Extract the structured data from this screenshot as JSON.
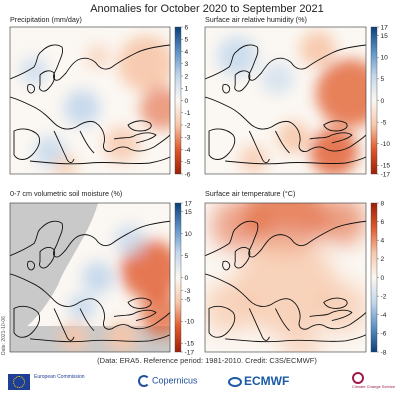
{
  "figure": {
    "title": "Anomalies for October 2020 to September 2021",
    "footnote": "(Data: ERA5.  Reference period: 1981-2010.  Credit: C3S/ECMWF)",
    "date_stamp": "Date: 2021-10-06"
  },
  "colors": {
    "negative_strong": "#9e1f07",
    "negative": "#e0582a",
    "negative_light": "#f7c7aa",
    "neutral": "#fbf7f2",
    "positive_light": "#c3d7ec",
    "positive": "#5c92c7",
    "positive_strong": "#0b3f7a",
    "land_mask": "#c9c9c9",
    "coastline": "#111111"
  },
  "chart_data": [
    {
      "type": "heatmap",
      "title": "Precipitation (mm/day)",
      "colorbar_ticks": [
        6,
        5,
        4,
        3,
        2,
        1,
        0,
        -1,
        -2,
        -3,
        -4,
        -5,
        -6
      ],
      "vmin": -6,
      "vmax": 6,
      "colormap": "red-negative / blue-positive",
      "pattern": "mixed weak anomalies; drier over eastern Europe and the northeast, wetter patches over central Europe and the Mediterranean"
    },
    {
      "type": "heatmap",
      "title": "Surface air relative humidity (%)",
      "colorbar_ticks": [
        17,
        15,
        10,
        5,
        0,
        -5,
        -10,
        -15,
        -17
      ],
      "vmin": -17,
      "vmax": 17,
      "colormap": "red-negative / blue-positive",
      "pattern": "drier than average over Russia, Turkey and the eastern Mediterranean; slightly more humid over the northwest"
    },
    {
      "type": "heatmap",
      "title": "0-7 cm volumetric soil moisture (%)",
      "colorbar_ticks": [
        17,
        15,
        10,
        5,
        0,
        -3,
        -5,
        -10,
        -15,
        -17
      ],
      "vmin": -17,
      "vmax": 17,
      "colormap": "red-negative / blue-positive",
      "pattern": "drier than average over European Russia and parts of southern Europe; wetter patches over central Europe; ocean areas masked grey"
    },
    {
      "type": "heatmap",
      "title": "Surface air temperature (°C)",
      "colorbar_ticks": [
        8,
        6,
        4,
        2,
        0,
        -2,
        -4,
        -6,
        -8
      ],
      "vmin": -8,
      "vmax": 8,
      "colormap": "blue-negative / red-positive",
      "pattern": "warmer than average across almost the whole domain, strongest anomaly in the far north and the Arctic"
    }
  ],
  "logos": {
    "eu_text": "European Commission",
    "copernicus": "Copernicus",
    "ecmwf": "ECMWF",
    "c3s": "Climate Change Service"
  }
}
